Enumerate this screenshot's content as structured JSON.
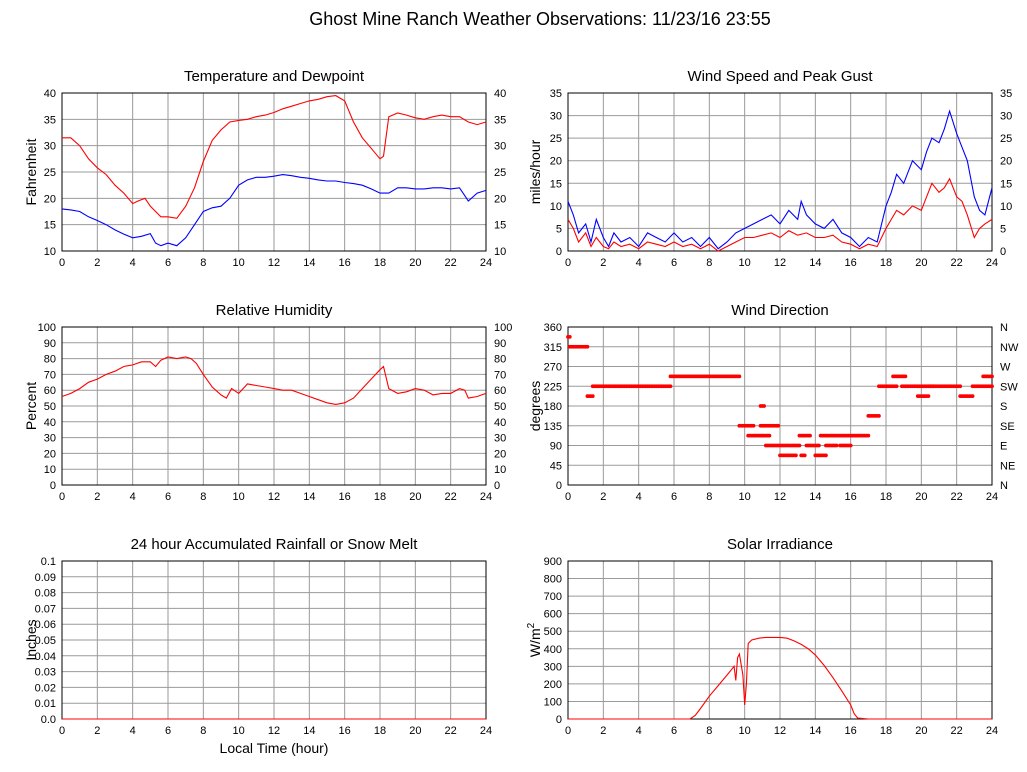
{
  "page": {
    "title": "Ghost Mine Ranch Weather Observations: 11/23/16 23:55"
  },
  "colors": {
    "red": "#ff0000",
    "blue": "#0000ff",
    "grid": "#9a9a9a"
  },
  "chart_data": [
    {
      "id": "temp",
      "type": "line",
      "title": "Temperature and Dewpoint",
      "xlabel": "",
      "ylabel": "Fahrenheit",
      "xlim": [
        0,
        24
      ],
      "ylim": [
        10,
        40
      ],
      "x_ticks": [
        0,
        2,
        4,
        6,
        8,
        10,
        12,
        14,
        16,
        18,
        20,
        22,
        24
      ],
      "y_ticks": [
        10,
        15,
        20,
        25,
        30,
        35,
        40
      ],
      "right_ticks": [
        "10",
        "15",
        "20",
        "25",
        "30",
        "35",
        "40"
      ],
      "grid": true,
      "series": [
        {
          "color": "#ff0000",
          "x": [
            0,
            0.5,
            1,
            1.5,
            2,
            2.5,
            3,
            3.5,
            4,
            4.3,
            4.7,
            5,
            5.3,
            5.6,
            6,
            6.5,
            7,
            7.5,
            8,
            8.5,
            9,
            9.5,
            10,
            10.5,
            11,
            11.5,
            12,
            12.5,
            13,
            13.5,
            14,
            14.5,
            15,
            15.5,
            16,
            16.5,
            17,
            17.5,
            18,
            18.2,
            18.5,
            19,
            19.5,
            20,
            20.5,
            21,
            21.5,
            22,
            22.5,
            23,
            23.5,
            24
          ],
          "y": [
            31.5,
            31.5,
            30,
            27.5,
            25.8,
            24.5,
            22.5,
            21,
            19,
            19.5,
            20,
            18.5,
            17.5,
            16.5,
            16.5,
            16.2,
            18.5,
            22,
            27,
            31,
            33,
            34.5,
            34.8,
            35,
            35.5,
            35.8,
            36.3,
            37,
            37.5,
            38,
            38.5,
            38.8,
            39.3,
            39.5,
            38.5,
            34.5,
            31.5,
            29.5,
            27.5,
            28,
            35.5,
            36.2,
            35.8,
            35.3,
            35,
            35.5,
            35.8,
            35.5,
            35.5,
            34.5,
            34,
            34.5
          ]
        },
        {
          "color": "#0000ff",
          "x": [
            0,
            0.5,
            1,
            1.5,
            2,
            2.5,
            3,
            3.5,
            4,
            4.5,
            5,
            5.3,
            5.6,
            6,
            6.5,
            7,
            7.5,
            8,
            8.5,
            9,
            9.5,
            10,
            10.5,
            11,
            11.5,
            12,
            12.5,
            13,
            13.5,
            14,
            14.5,
            15,
            15.5,
            16,
            16.5,
            17,
            17.5,
            18,
            18.5,
            19,
            19.5,
            20,
            20.5,
            21,
            21.5,
            22,
            22.5,
            22.8,
            23,
            23.5,
            24
          ],
          "y": [
            18,
            17.8,
            17.5,
            16.5,
            15.8,
            15,
            14,
            13.2,
            12.5,
            12.8,
            13.3,
            11.5,
            11,
            11.5,
            11,
            12.5,
            15,
            17.5,
            18.2,
            18.5,
            20,
            22.5,
            23.5,
            24,
            24,
            24.2,
            24.5,
            24.3,
            24,
            23.8,
            23.5,
            23.3,
            23.3,
            23,
            22.8,
            22.5,
            21.8,
            21,
            21,
            22,
            22,
            21.8,
            21.8,
            22,
            22,
            21.8,
            22,
            20.5,
            19.5,
            21,
            21.5
          ]
        }
      ]
    },
    {
      "id": "wind",
      "type": "line",
      "title": "Wind Speed and Peak Gust",
      "xlabel": "",
      "ylabel": "miles/hour",
      "xlim": [
        0,
        24
      ],
      "ylim": [
        0,
        35
      ],
      "x_ticks": [
        0,
        2,
        4,
        6,
        8,
        10,
        12,
        14,
        16,
        18,
        20,
        22,
        24
      ],
      "y_ticks": [
        0,
        5,
        10,
        15,
        20,
        25,
        30,
        35
      ],
      "right_ticks": [
        "0",
        "5",
        "10",
        "15",
        "20",
        "25",
        "30",
        "35"
      ],
      "grid": true,
      "series": [
        {
          "color": "#0000ff",
          "x": [
            0,
            0.3,
            0.6,
            1,
            1.3,
            1.6,
            2,
            2.3,
            2.6,
            3,
            3.5,
            4,
            4.5,
            5,
            5.5,
            6,
            6.5,
            7,
            7.5,
            8,
            8.5,
            9,
            9.5,
            10,
            10.5,
            11,
            11.5,
            12,
            12.5,
            13,
            13.2,
            13.5,
            14,
            14.5,
            15,
            15.5,
            16,
            16.5,
            17,
            17.5,
            18,
            18.3,
            18.6,
            19,
            19.5,
            20,
            20.3,
            20.6,
            21,
            21.3,
            21.6,
            22,
            22.3,
            22.6,
            23,
            23.3,
            23.6,
            24
          ],
          "y": [
            11,
            8,
            4,
            6,
            2,
            7,
            3,
            1,
            4,
            2,
            3,
            1,
            4,
            3,
            2,
            4,
            2,
            3,
            1,
            3,
            0.5,
            2,
            4,
            5,
            6,
            7,
            8,
            6,
            9,
            7,
            11,
            8,
            6,
            5,
            7,
            4,
            3,
            1,
            3,
            2,
            10,
            13,
            17,
            15,
            20,
            18,
            22,
            25,
            24,
            27,
            31,
            26,
            23,
            20,
            12,
            9,
            8,
            14
          ]
        },
        {
          "color": "#ff0000",
          "x": [
            0,
            0.3,
            0.6,
            1,
            1.3,
            1.6,
            2,
            2.3,
            2.6,
            3,
            3.5,
            4,
            4.5,
            5,
            5.5,
            6,
            6.5,
            7,
            7.5,
            8,
            8.5,
            9,
            9.5,
            10,
            10.5,
            11,
            11.5,
            12,
            12.5,
            13,
            13.5,
            14,
            14.5,
            15,
            15.5,
            16,
            16.5,
            17,
            17.5,
            18,
            18.3,
            18.6,
            19,
            19.5,
            20,
            20.3,
            20.6,
            21,
            21.3,
            21.6,
            22,
            22.3,
            22.6,
            23,
            23.3,
            23.6,
            24
          ],
          "y": [
            7,
            5,
            2,
            4,
            1,
            3,
            1,
            0.5,
            2,
            1,
            1.5,
            0.5,
            2,
            1.5,
            1,
            2,
            1,
            1.5,
            0.5,
            1.5,
            0,
            1,
            2,
            3,
            3,
            3.5,
            4,
            3,
            4.5,
            3.5,
            4,
            3,
            3,
            3.5,
            2,
            1.5,
            0.5,
            1.5,
            1,
            5,
            7,
            9,
            8,
            10,
            9,
            12,
            15,
            13,
            14,
            16,
            12,
            11,
            8,
            3,
            5,
            6,
            7
          ]
        }
      ]
    },
    {
      "id": "humidity",
      "type": "line",
      "title": "Relative Humidity",
      "xlabel": "",
      "ylabel": "Percent",
      "xlim": [
        0,
        24
      ],
      "ylim": [
        0,
        100
      ],
      "x_ticks": [
        0,
        2,
        4,
        6,
        8,
        10,
        12,
        14,
        16,
        18,
        20,
        22,
        24
      ],
      "y_ticks": [
        0,
        10,
        20,
        30,
        40,
        50,
        60,
        70,
        80,
        90,
        100
      ],
      "right_ticks": [
        "0",
        "10",
        "20",
        "30",
        "40",
        "50",
        "60",
        "70",
        "80",
        "90",
        "100"
      ],
      "grid": true,
      "series": [
        {
          "color": "#ff0000",
          "x": [
            0,
            0.5,
            1,
            1.5,
            2,
            2.5,
            3,
            3.5,
            4,
            4.5,
            5,
            5.3,
            5.6,
            6,
            6.5,
            7,
            7.3,
            7.6,
            8,
            8.5,
            9,
            9.3,
            9.6,
            10,
            10.5,
            11,
            11.5,
            12,
            12.5,
            13,
            13.5,
            14,
            14.5,
            15,
            15.5,
            16,
            16.5,
            17,
            17.5,
            18,
            18.2,
            18.5,
            19,
            19.5,
            20,
            20.5,
            21,
            21.5,
            22,
            22.5,
            22.8,
            23,
            23.5,
            24
          ],
          "y": [
            56,
            58,
            61,
            65,
            67,
            70,
            72,
            75,
            76,
            78,
            78,
            75,
            79,
            81,
            80,
            81,
            80,
            77,
            70,
            62,
            57,
            55,
            61,
            58,
            64,
            63,
            62,
            61,
            60,
            60,
            58,
            56,
            54,
            52,
            51,
            52,
            55,
            61,
            67,
            73,
            75,
            61,
            58,
            59,
            61,
            60,
            57,
            58,
            58,
            61,
            60,
            55,
            56,
            58
          ]
        }
      ]
    },
    {
      "id": "direction",
      "type": "scatter",
      "title": "Wind Direction",
      "xlabel": "",
      "ylabel": "degrees",
      "xlim": [
        0,
        24
      ],
      "ylim": [
        0,
        360
      ],
      "x_ticks": [
        0,
        2,
        4,
        6,
        8,
        10,
        12,
        14,
        16,
        18,
        20,
        22,
        24
      ],
      "y_ticks": [
        0,
        45,
        90,
        135,
        180,
        225,
        270,
        315,
        360
      ],
      "right_ticks": [
        "N",
        "NE",
        "E",
        "SE",
        "S",
        "SW",
        "W",
        "NW",
        "N"
      ],
      "grid": true,
      "series": [
        {
          "color": "#ff0000",
          "segments": [
            {
              "x0": 0,
              "x1": 0.1,
              "y": 337.5
            },
            {
              "x0": 0.1,
              "x1": 1.1,
              "y": 315
            },
            {
              "x0": 1.1,
              "x1": 1.4,
              "y": 202.5
            },
            {
              "x0": 1.4,
              "x1": 5.8,
              "y": 225
            },
            {
              "x0": 5.8,
              "x1": 9.7,
              "y": 247.5
            },
            {
              "x0": 9.7,
              "x1": 10.5,
              "y": 135
            },
            {
              "x0": 10.2,
              "x1": 10.9,
              "y": 112.5
            },
            {
              "x0": 10.9,
              "x1": 11.1,
              "y": 180
            },
            {
              "x0": 10.9,
              "x1": 11.4,
              "y": 135
            },
            {
              "x0": 11.0,
              "x1": 11.4,
              "y": 112.5
            },
            {
              "x0": 11.4,
              "x1": 11.9,
              "y": 135
            },
            {
              "x0": 11.2,
              "x1": 11.6,
              "y": 90
            },
            {
              "x0": 11.7,
              "x1": 13.1,
              "y": 90
            },
            {
              "x0": 12.0,
              "x1": 12.9,
              "y": 67.5
            },
            {
              "x0": 13.1,
              "x1": 13.7,
              "y": 112.5
            },
            {
              "x0": 13.2,
              "x1": 13.4,
              "y": 67.5
            },
            {
              "x0": 13.5,
              "x1": 14.2,
              "y": 90
            },
            {
              "x0": 14.0,
              "x1": 14.6,
              "y": 67.5
            },
            {
              "x0": 14.3,
              "x1": 15.2,
              "y": 112.5
            },
            {
              "x0": 14.6,
              "x1": 15.2,
              "y": 90
            },
            {
              "x0": 15.3,
              "x1": 17.0,
              "y": 112.5
            },
            {
              "x0": 15.4,
              "x1": 16.0,
              "y": 90
            },
            {
              "x0": 17.0,
              "x1": 17.6,
              "y": 157.5
            },
            {
              "x0": 17.6,
              "x1": 18.6,
              "y": 225
            },
            {
              "x0": 18.4,
              "x1": 19.1,
              "y": 247.5
            },
            {
              "x0": 18.9,
              "x1": 20.7,
              "y": 225
            },
            {
              "x0": 19.8,
              "x1": 20.4,
              "y": 202.5
            },
            {
              "x0": 20.5,
              "x1": 22.2,
              "y": 225
            },
            {
              "x0": 22.2,
              "x1": 22.9,
              "y": 202.5
            },
            {
              "x0": 22.9,
              "x1": 23.5,
              "y": 225
            },
            {
              "x0": 23.5,
              "x1": 24,
              "y": 247.5
            },
            {
              "x0": 23.6,
              "x1": 24,
              "y": 225
            }
          ]
        }
      ]
    },
    {
      "id": "rain",
      "type": "line",
      "title": "24 hour Accumulated Rainfall or Snow Melt",
      "xlabel": "Local Time (hour)",
      "ylabel": "Inches",
      "xlim": [
        0,
        24
      ],
      "ylim": [
        0,
        0.1
      ],
      "x_ticks": [
        0,
        2,
        4,
        6,
        8,
        10,
        12,
        14,
        16,
        18,
        20,
        22,
        24
      ],
      "y_ticks": [
        0,
        0.01,
        0.02,
        0.03,
        0.04,
        0.05,
        0.06,
        0.07,
        0.08,
        0.09,
        0.1
      ],
      "y_tick_labels": [
        "0.0",
        "0.01",
        "0.02",
        "0.03",
        "0.04",
        "0.05",
        "0.06",
        "0.07",
        "0.08",
        "0.09",
        "0.1"
      ],
      "grid": true,
      "series": [
        {
          "color": "#ff0000",
          "x": [
            0,
            24
          ],
          "y": [
            0,
            0
          ]
        }
      ]
    },
    {
      "id": "solar",
      "type": "line",
      "title": "Solar Irradiance",
      "xlabel": "",
      "ylabel": "W/m",
      "ylabel_sup": "2",
      "xlim": [
        0,
        24
      ],
      "ylim": [
        0,
        900
      ],
      "x_ticks": [
        0,
        2,
        4,
        6,
        8,
        10,
        12,
        14,
        16,
        18,
        20,
        22,
        24
      ],
      "y_ticks": [
        0,
        100,
        200,
        300,
        400,
        500,
        600,
        700,
        800,
        900
      ],
      "grid": true,
      "series": [
        {
          "color": "#ff0000",
          "x": [
            0,
            6.9,
            7.2,
            7.5,
            8,
            8.5,
            9,
            9.4,
            9.5,
            9.6,
            9.7,
            9.9,
            10.0,
            10.1,
            10.2,
            10.4,
            10.8,
            11.2,
            11.6,
            12,
            12.4,
            12.8,
            13.2,
            13.6,
            14,
            14.5,
            15,
            15.5,
            16,
            16.2,
            16.4,
            17,
            24
          ],
          "y": [
            0,
            0,
            20,
            60,
            130,
            190,
            250,
            300,
            220,
            350,
            370,
            250,
            80,
            200,
            430,
            450,
            460,
            465,
            465,
            465,
            460,
            445,
            425,
            400,
            365,
            305,
            235,
            160,
            80,
            30,
            5,
            0,
            0
          ]
        }
      ]
    }
  ]
}
